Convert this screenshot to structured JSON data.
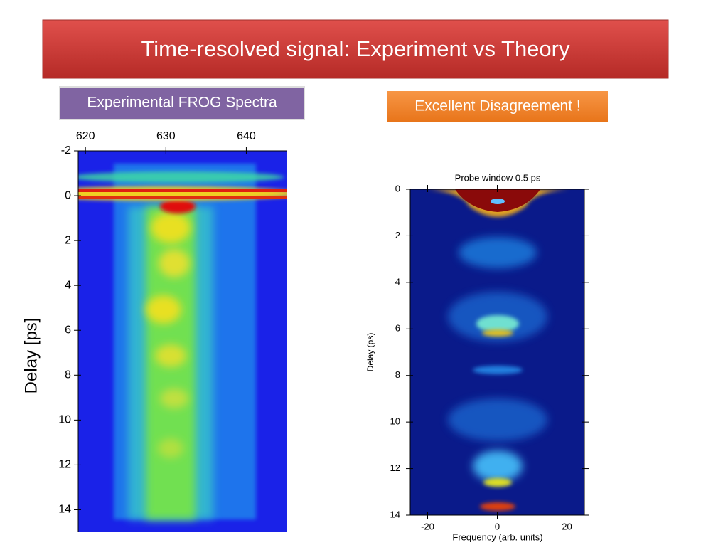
{
  "title": "Time-resolved signal: Experiment vs Theory",
  "left_label": "Experimental FROG Spectra",
  "right_label": "Excellent Disagreement !",
  "left_plot": {
    "ylabel": "Delay [ps]",
    "xlim": [
      619.1,
      645
    ],
    "xticks": [
      620,
      630,
      640
    ],
    "ylim": [
      -2,
      15
    ],
    "yticks": [
      -2,
      0,
      2,
      4,
      6,
      8,
      10,
      12,
      14
    ]
  },
  "right_plot": {
    "title": "Probe window 0.5 ps",
    "xlabel": "Frequency (arb. units)",
    "ylabel": "Delay (ps)",
    "xlim": [
      -25,
      25
    ],
    "xticks": [
      -20,
      0,
      20
    ],
    "ylim": [
      0,
      14
    ],
    "yticks": [
      0,
      2,
      4,
      6,
      8,
      10,
      12,
      14
    ]
  }
}
